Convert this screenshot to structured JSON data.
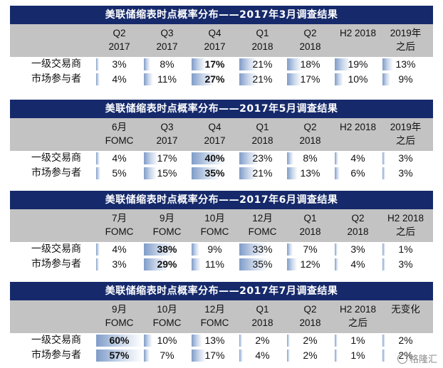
{
  "sections": [
    {
      "title": "美联储缩表时点概率分布——2017年3月调查结果",
      "columns": [
        [
          "Q2",
          "2017"
        ],
        [
          "Q3",
          "2017"
        ],
        [
          "Q4",
          "2017"
        ],
        [
          "Q1",
          "2018"
        ],
        [
          "Q2",
          "2018"
        ],
        [
          "H2 2018",
          ""
        ],
        [
          "2019年",
          "之后"
        ]
      ],
      "rows": [
        {
          "label": "一级交易商",
          "values": [
            "3%",
            "8%",
            "17%",
            "21%",
            "18%",
            "19%",
            "13%"
          ],
          "fills": [
            0.03,
            0.08,
            0.17,
            0.21,
            0.18,
            0.19,
            0.13
          ],
          "bold": [
            false,
            false,
            true,
            false,
            false,
            false,
            false
          ]
        },
        {
          "label": "市场参与者",
          "values": [
            "4%",
            "11%",
            "27%",
            "21%",
            "17%",
            "10%",
            "9%"
          ],
          "fills": [
            0.04,
            0.11,
            0.27,
            0.21,
            0.17,
            0.1,
            0.09
          ],
          "bold": [
            false,
            false,
            true,
            false,
            false,
            false,
            false
          ]
        }
      ]
    },
    {
      "title": "美联储缩表时点概率分布——2017年5月调查结果",
      "columns": [
        [
          "6月",
          "FOMC"
        ],
        [
          "Q3",
          "2017"
        ],
        [
          "Q4",
          "2017"
        ],
        [
          "Q1",
          "2018"
        ],
        [
          "Q2",
          "2018"
        ],
        [
          "H2 2018",
          ""
        ],
        [
          "2019年",
          "之后"
        ]
      ],
      "rows": [
        {
          "label": "一级交易商",
          "values": [
            "4%",
            "17%",
            "40%",
            "23%",
            "8%",
            "4%",
            "3%"
          ],
          "fills": [
            0.04,
            0.17,
            0.4,
            0.23,
            0.08,
            0.04,
            0.03
          ],
          "bold": [
            false,
            false,
            true,
            false,
            false,
            false,
            false
          ]
        },
        {
          "label": "市场参与者",
          "values": [
            "5%",
            "15%",
            "35%",
            "21%",
            "13%",
            "6%",
            "3%"
          ],
          "fills": [
            0.05,
            0.15,
            0.35,
            0.21,
            0.13,
            0.06,
            0.03
          ],
          "bold": [
            false,
            false,
            true,
            false,
            false,
            false,
            false
          ]
        }
      ]
    },
    {
      "title": "美联储缩表时点概率分布——2017年6月调查结果",
      "columns": [
        [
          "7月",
          "FOMC"
        ],
        [
          "9月",
          "FOMC"
        ],
        [
          "10月",
          "FOMC"
        ],
        [
          "12月",
          "FOMC"
        ],
        [
          "Q1",
          "2018"
        ],
        [
          "Q2",
          "2018"
        ],
        [
          "H2 2018",
          "之后"
        ]
      ],
      "rows": [
        {
          "label": "一级交易商",
          "values": [
            "4%",
            "38%",
            "9%",
            "33%",
            "7%",
            "3%",
            "1%"
          ],
          "fills": [
            0.04,
            0.38,
            0.09,
            0.33,
            0.07,
            0.03,
            0.01
          ],
          "bold": [
            false,
            true,
            false,
            false,
            false,
            false,
            false
          ]
        },
        {
          "label": "市场参与者",
          "values": [
            "3%",
            "29%",
            "11%",
            "35%",
            "12%",
            "4%",
            "3%"
          ],
          "fills": [
            0.03,
            0.29,
            0.11,
            0.35,
            0.12,
            0.04,
            0.03
          ],
          "bold": [
            false,
            true,
            false,
            false,
            false,
            false,
            false
          ]
        }
      ]
    },
    {
      "title": "美联储缩表时点概率分布——2017年7月调查结果",
      "columns": [
        [
          "9月",
          "FOMC"
        ],
        [
          "10月",
          "FOMC"
        ],
        [
          "12月",
          "FOMC"
        ],
        [
          "Q1",
          "2018"
        ],
        [
          "Q2",
          "2018"
        ],
        [
          "H2 2018",
          "之后"
        ],
        [
          "无变化",
          ""
        ]
      ],
      "rows": [
        {
          "label": "一级交易商",
          "values": [
            "60%",
            "10%",
            "13%",
            "2%",
            "2%",
            "1%",
            "2%"
          ],
          "fills": [
            0.6,
            0.1,
            0.13,
            0.02,
            0.02,
            0.01,
            0.02
          ],
          "bold": [
            true,
            false,
            false,
            false,
            false,
            false,
            false
          ]
        },
        {
          "label": "市场参与者",
          "values": [
            "57%",
            "7%",
            "17%",
            "4%",
            "2%",
            "1%",
            "2%"
          ],
          "fills": [
            0.57,
            0.07,
            0.17,
            0.04,
            0.02,
            0.01,
            0.02
          ],
          "bold": [
            true,
            false,
            false,
            false,
            false,
            false,
            false
          ]
        }
      ]
    }
  ],
  "watermark": "格隆汇",
  "colors": {
    "title_bg": "#162a6b",
    "header_bg": "#c3c3c3",
    "bar_strong": "#7f9cc8",
    "bar_light": "#c9d6ea"
  }
}
